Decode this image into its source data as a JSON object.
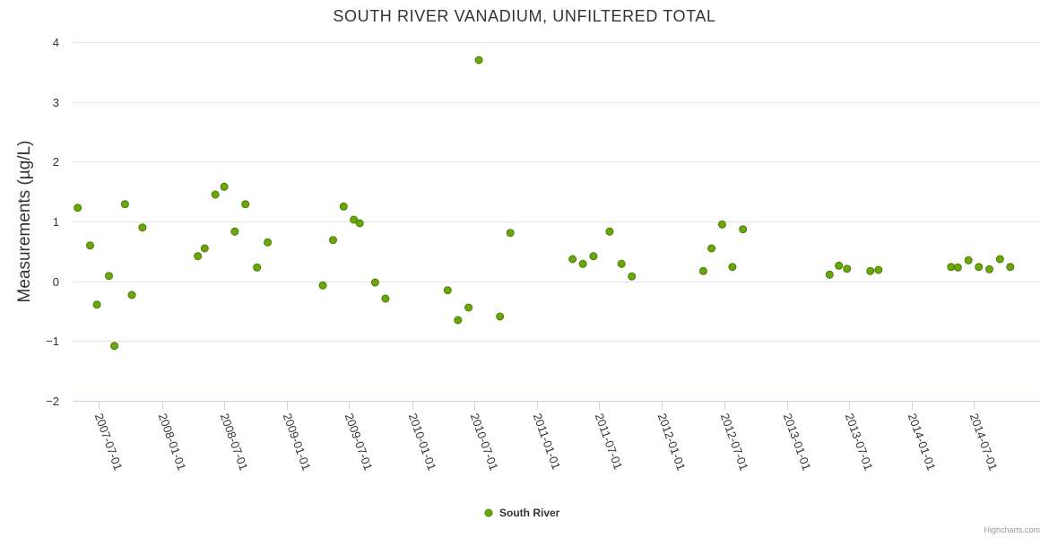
{
  "chart_data": {
    "type": "scatter",
    "title": "SOUTH RIVER VANADIUM, UNFILTERED TOTAL",
    "ylabel": "Measurements (µg/L)",
    "xlabel": "",
    "ylim": [
      -2,
      4
    ],
    "yticks": [
      -2,
      -1,
      0,
      1,
      2,
      3,
      4
    ],
    "ytick_labels": [
      "−2",
      "−1",
      "0",
      "1",
      "2",
      "3",
      "4"
    ],
    "xlim": [
      "2007-04-15",
      "2015-01-10"
    ],
    "xticks": [
      "2007-07-01",
      "2008-01-01",
      "2008-07-01",
      "2009-01-01",
      "2009-07-01",
      "2010-01-01",
      "2010-07-01",
      "2011-01-01",
      "2011-07-01",
      "2012-01-01",
      "2012-07-01",
      "2013-01-01",
      "2013-07-01",
      "2014-01-01",
      "2014-07-01"
    ],
    "grid": true,
    "legend": "bottom-center",
    "series": [
      {
        "name": "South River",
        "color": "#6aa809",
        "points": [
          {
            "x": "2007-04-30",
            "y": 1.23
          },
          {
            "x": "2007-06-05",
            "y": 0.6
          },
          {
            "x": "2007-06-25",
            "y": -0.39
          },
          {
            "x": "2007-07-30",
            "y": 0.09
          },
          {
            "x": "2007-08-15",
            "y": -1.08
          },
          {
            "x": "2007-09-15",
            "y": 1.29
          },
          {
            "x": "2007-10-05",
            "y": -0.23
          },
          {
            "x": "2007-11-05",
            "y": 0.9
          },
          {
            "x": "2008-04-15",
            "y": 0.42
          },
          {
            "x": "2008-05-05",
            "y": 0.55
          },
          {
            "x": "2008-06-05",
            "y": 1.45
          },
          {
            "x": "2008-07-01",
            "y": 1.58
          },
          {
            "x": "2008-08-01",
            "y": 0.83
          },
          {
            "x": "2008-09-01",
            "y": 1.29
          },
          {
            "x": "2008-10-05",
            "y": 0.23
          },
          {
            "x": "2008-11-05",
            "y": 0.65
          },
          {
            "x": "2009-04-15",
            "y": -0.07
          },
          {
            "x": "2009-05-15",
            "y": 0.69
          },
          {
            "x": "2009-06-15",
            "y": 1.25
          },
          {
            "x": "2009-07-15",
            "y": 1.03
          },
          {
            "x": "2009-08-01",
            "y": 0.97
          },
          {
            "x": "2009-09-15",
            "y": -0.02
          },
          {
            "x": "2009-10-15",
            "y": -0.29
          },
          {
            "x": "2010-04-15",
            "y": -0.15
          },
          {
            "x": "2010-05-15",
            "y": -0.65
          },
          {
            "x": "2010-06-15",
            "y": -0.44
          },
          {
            "x": "2010-07-15",
            "y": 3.7
          },
          {
            "x": "2010-09-15",
            "y": -0.59
          },
          {
            "x": "2010-10-15",
            "y": 0.81
          },
          {
            "x": "2011-04-15",
            "y": 0.37
          },
          {
            "x": "2011-05-15",
            "y": 0.29
          },
          {
            "x": "2011-06-15",
            "y": 0.42
          },
          {
            "x": "2011-08-01",
            "y": 0.83
          },
          {
            "x": "2011-09-05",
            "y": 0.29
          },
          {
            "x": "2011-10-05",
            "y": 0.08
          },
          {
            "x": "2012-05-01",
            "y": 0.17
          },
          {
            "x": "2012-05-25",
            "y": 0.55
          },
          {
            "x": "2012-06-25",
            "y": 0.95
          },
          {
            "x": "2012-07-25",
            "y": 0.24
          },
          {
            "x": "2012-08-25",
            "y": 0.87
          },
          {
            "x": "2013-05-05",
            "y": 0.11
          },
          {
            "x": "2013-06-01",
            "y": 0.26
          },
          {
            "x": "2013-06-25",
            "y": 0.21
          },
          {
            "x": "2013-09-01",
            "y": 0.17
          },
          {
            "x": "2013-09-25",
            "y": 0.19
          },
          {
            "x": "2014-04-25",
            "y": 0.24
          },
          {
            "x": "2014-05-15",
            "y": 0.23
          },
          {
            "x": "2014-06-15",
            "y": 0.35
          },
          {
            "x": "2014-07-15",
            "y": 0.24
          },
          {
            "x": "2014-08-15",
            "y": 0.2
          },
          {
            "x": "2014-09-15",
            "y": 0.37
          },
          {
            "x": "2014-10-15",
            "y": 0.24
          }
        ]
      }
    ]
  },
  "legend": {
    "label": "South River"
  },
  "credits": {
    "text": "Highcharts.com"
  }
}
